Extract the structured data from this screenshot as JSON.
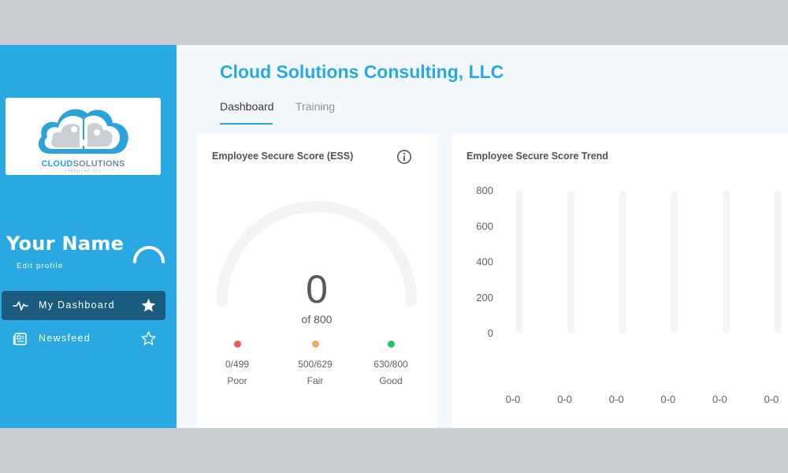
{
  "sidebar": {
    "logo": {
      "word1": "CLOUD",
      "word2": "SOLUTIONS",
      "subtitle": "CONSULTING, LLC"
    },
    "user": {
      "name": "Your Name",
      "edit_label": "Edit profile"
    },
    "nav": [
      {
        "label": "My Dashboard",
        "icon": "activity-icon",
        "active": true,
        "starred": true
      },
      {
        "label": "Newsfeed",
        "icon": "newspaper-icon",
        "active": false,
        "starred": false
      }
    ]
  },
  "header": {
    "title": "Cloud Solutions Consulting, LLC",
    "tabs": [
      {
        "label": "Dashboard",
        "active": true
      },
      {
        "label": "Training",
        "active": false
      }
    ]
  },
  "ess": {
    "title": "Employee Secure Score (ESS)",
    "score": "0",
    "max_label": "of 800",
    "score_fraction": 0,
    "legend": [
      {
        "range": "0/499",
        "label": "Poor",
        "color": "#ef5b5b"
      },
      {
        "range": "500/629",
        "label": "Fair",
        "color": "#f5a65b"
      },
      {
        "range": "630/800",
        "label": "Good",
        "color": "#1fc46a"
      }
    ]
  },
  "trend": {
    "title": "Employee Secure Score Trend"
  },
  "chart_data": {
    "type": "bar",
    "title": "Employee Secure Score Trend",
    "categories": [
      "0-0",
      "0-0",
      "0-0",
      "0-0",
      "0-0",
      "0-0"
    ],
    "values": [
      0,
      0,
      0,
      0,
      0,
      0
    ],
    "y_ticks": [
      0,
      200,
      400,
      600,
      800
    ],
    "ylim": [
      0,
      800
    ],
    "xlabel": "",
    "ylabel": ""
  },
  "colors": {
    "accent": "#29a8e1",
    "active_nav": "#1a5b7f",
    "track": "#f2f4f5"
  }
}
